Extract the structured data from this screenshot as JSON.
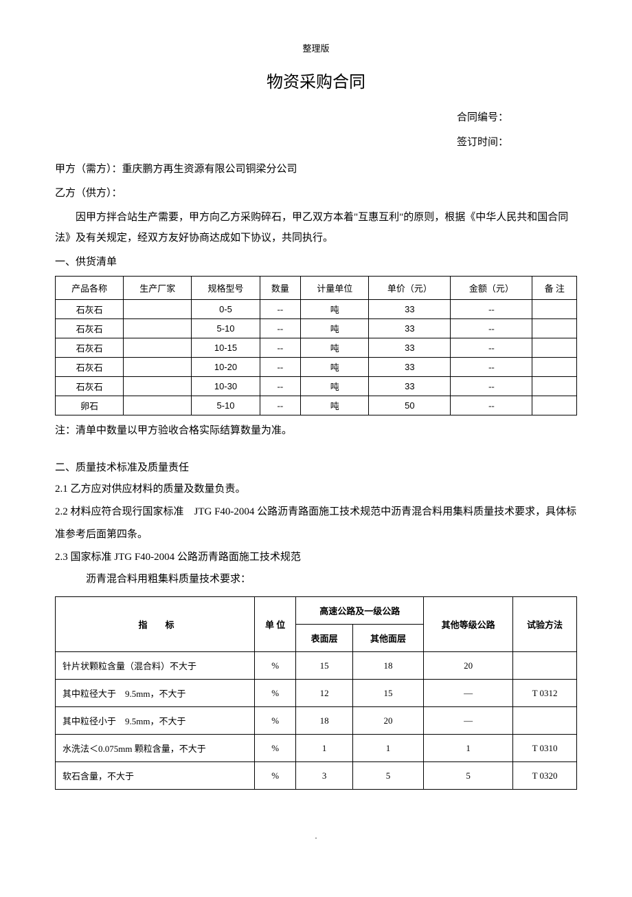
{
  "header_tag": "整理版",
  "title": "物资采购合同",
  "contract_no_label": "合同编号：",
  "sign_date_label": "签订时间：",
  "party_a": "甲方（需方）：重庆鹏方再生资源有限公司铜梁分公司",
  "party_b": "乙方（供方）：",
  "intro": "因甲方拌合站生产需要，甲方向乙方采购碎石，甲乙双方本着\"互惠互利\"的原则，根据《中华人民共和国合同法》及有关规定，经双方友好协商达成如下协议，共同执行。",
  "section1_title": "一、供货清单",
  "table1": {
    "headers": [
      "产品各称",
      "生产厂家",
      "规格型号",
      "数量",
      "计量单位",
      "单价（元）",
      "金额（元）",
      "备 注"
    ],
    "rows": [
      [
        "石灰石",
        "",
        "0-5",
        "--",
        "吨",
        "33",
        "--",
        ""
      ],
      [
        "石灰石",
        "",
        "5-10",
        "--",
        "吨",
        "33",
        "--",
        ""
      ],
      [
        "石灰石",
        "",
        "10-15",
        "--",
        "吨",
        "33",
        "--",
        ""
      ],
      [
        "石灰石",
        "",
        "10-20",
        "--",
        "吨",
        "33",
        "--",
        ""
      ],
      [
        "石灰石",
        "",
        "10-30",
        "--",
        "吨",
        "33",
        "--",
        ""
      ],
      [
        "卵石",
        "",
        "5-10",
        "--",
        "吨",
        "50",
        "--",
        ""
      ]
    ]
  },
  "table1_note": "注：清单中数量以甲方验收合格实际结算数量为准。",
  "section2_title": "二、质量技术标准及质量责任",
  "clause_2_1": "2.1 乙方应对供应材料的质量及数量负责。",
  "clause_2_2": "2.2 材料应符合现行国家标准 JTG F40-2004 公路沥青路面施工技术规范中沥青混合料用集料质量技术要求，具体标准参考后面第四条。",
  "clause_2_3": "2.3 国家标准 JTG F40-2004 公路沥青路面施工技术规范",
  "sub_heading": "沥青混合料用粗集料质量技术要求：",
  "table2": {
    "col_indicator": "指  标",
    "col_unit": "单 位",
    "col_highway": "高速公路及一级公路",
    "col_surface": "表面层",
    "col_other_surface": "其他面层",
    "col_other_grade": "其他等级公路",
    "col_method": "试验方法",
    "rows": [
      {
        "indicator": "针片状颗粒含量（混合料）不大于",
        "unit": "%",
        "surface": "15",
        "other_surface": "18",
        "other_grade": "20",
        "method": ""
      },
      {
        "indicator": "其中粒径大于 9.5mm，不大于",
        "unit": "%",
        "surface": "12",
        "other_surface": "15",
        "other_grade": "—",
        "method": "T 0312"
      },
      {
        "indicator": "其中粒径小于 9.5mm，不大于",
        "unit": "%",
        "surface": "18",
        "other_surface": "20",
        "other_grade": "—",
        "method": ""
      },
      {
        "indicator": "水洗法＜0.075mm 颗粒含量，不大于",
        "unit": "%",
        "surface": "1",
        "other_surface": "1",
        "other_grade": "1",
        "method": "T 0310"
      },
      {
        "indicator": "软石含量，不大于",
        "unit": "%",
        "surface": "3",
        "other_surface": "5",
        "other_grade": "5",
        "method": "T 0320"
      }
    ]
  },
  "footer": "."
}
